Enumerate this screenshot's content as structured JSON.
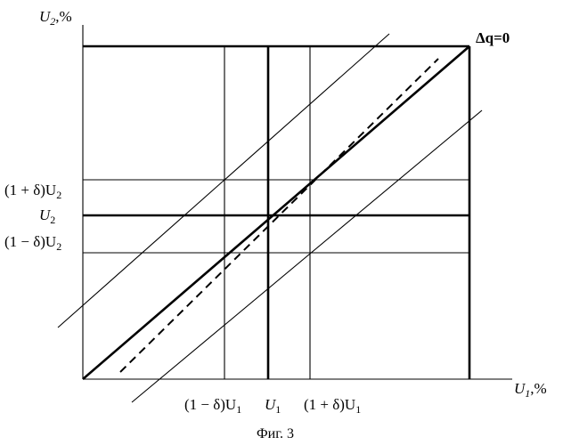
{
  "figure": {
    "y_axis_label": "U",
    "y_axis_sub": "2",
    "y_axis_unit": ",%",
    "x_axis_label": "U",
    "x_axis_sub": "1",
    "x_axis_unit": ",%",
    "curve_label": "Δq=0",
    "y_ticks": {
      "upper_prefix": "(1 + δ)U",
      "upper_sub": "2",
      "middle": "U",
      "middle_sub": "2",
      "lower_prefix": "(1 − δ)U",
      "lower_sub": "2"
    },
    "x_ticks": {
      "left_prefix": "(1 − δ)U",
      "left_sub": "1",
      "middle": "U",
      "middle_sub": "1",
      "right_prefix": "(1 + δ)U",
      "right_sub": "1"
    },
    "caption": "Фиг. 3"
  }
}
